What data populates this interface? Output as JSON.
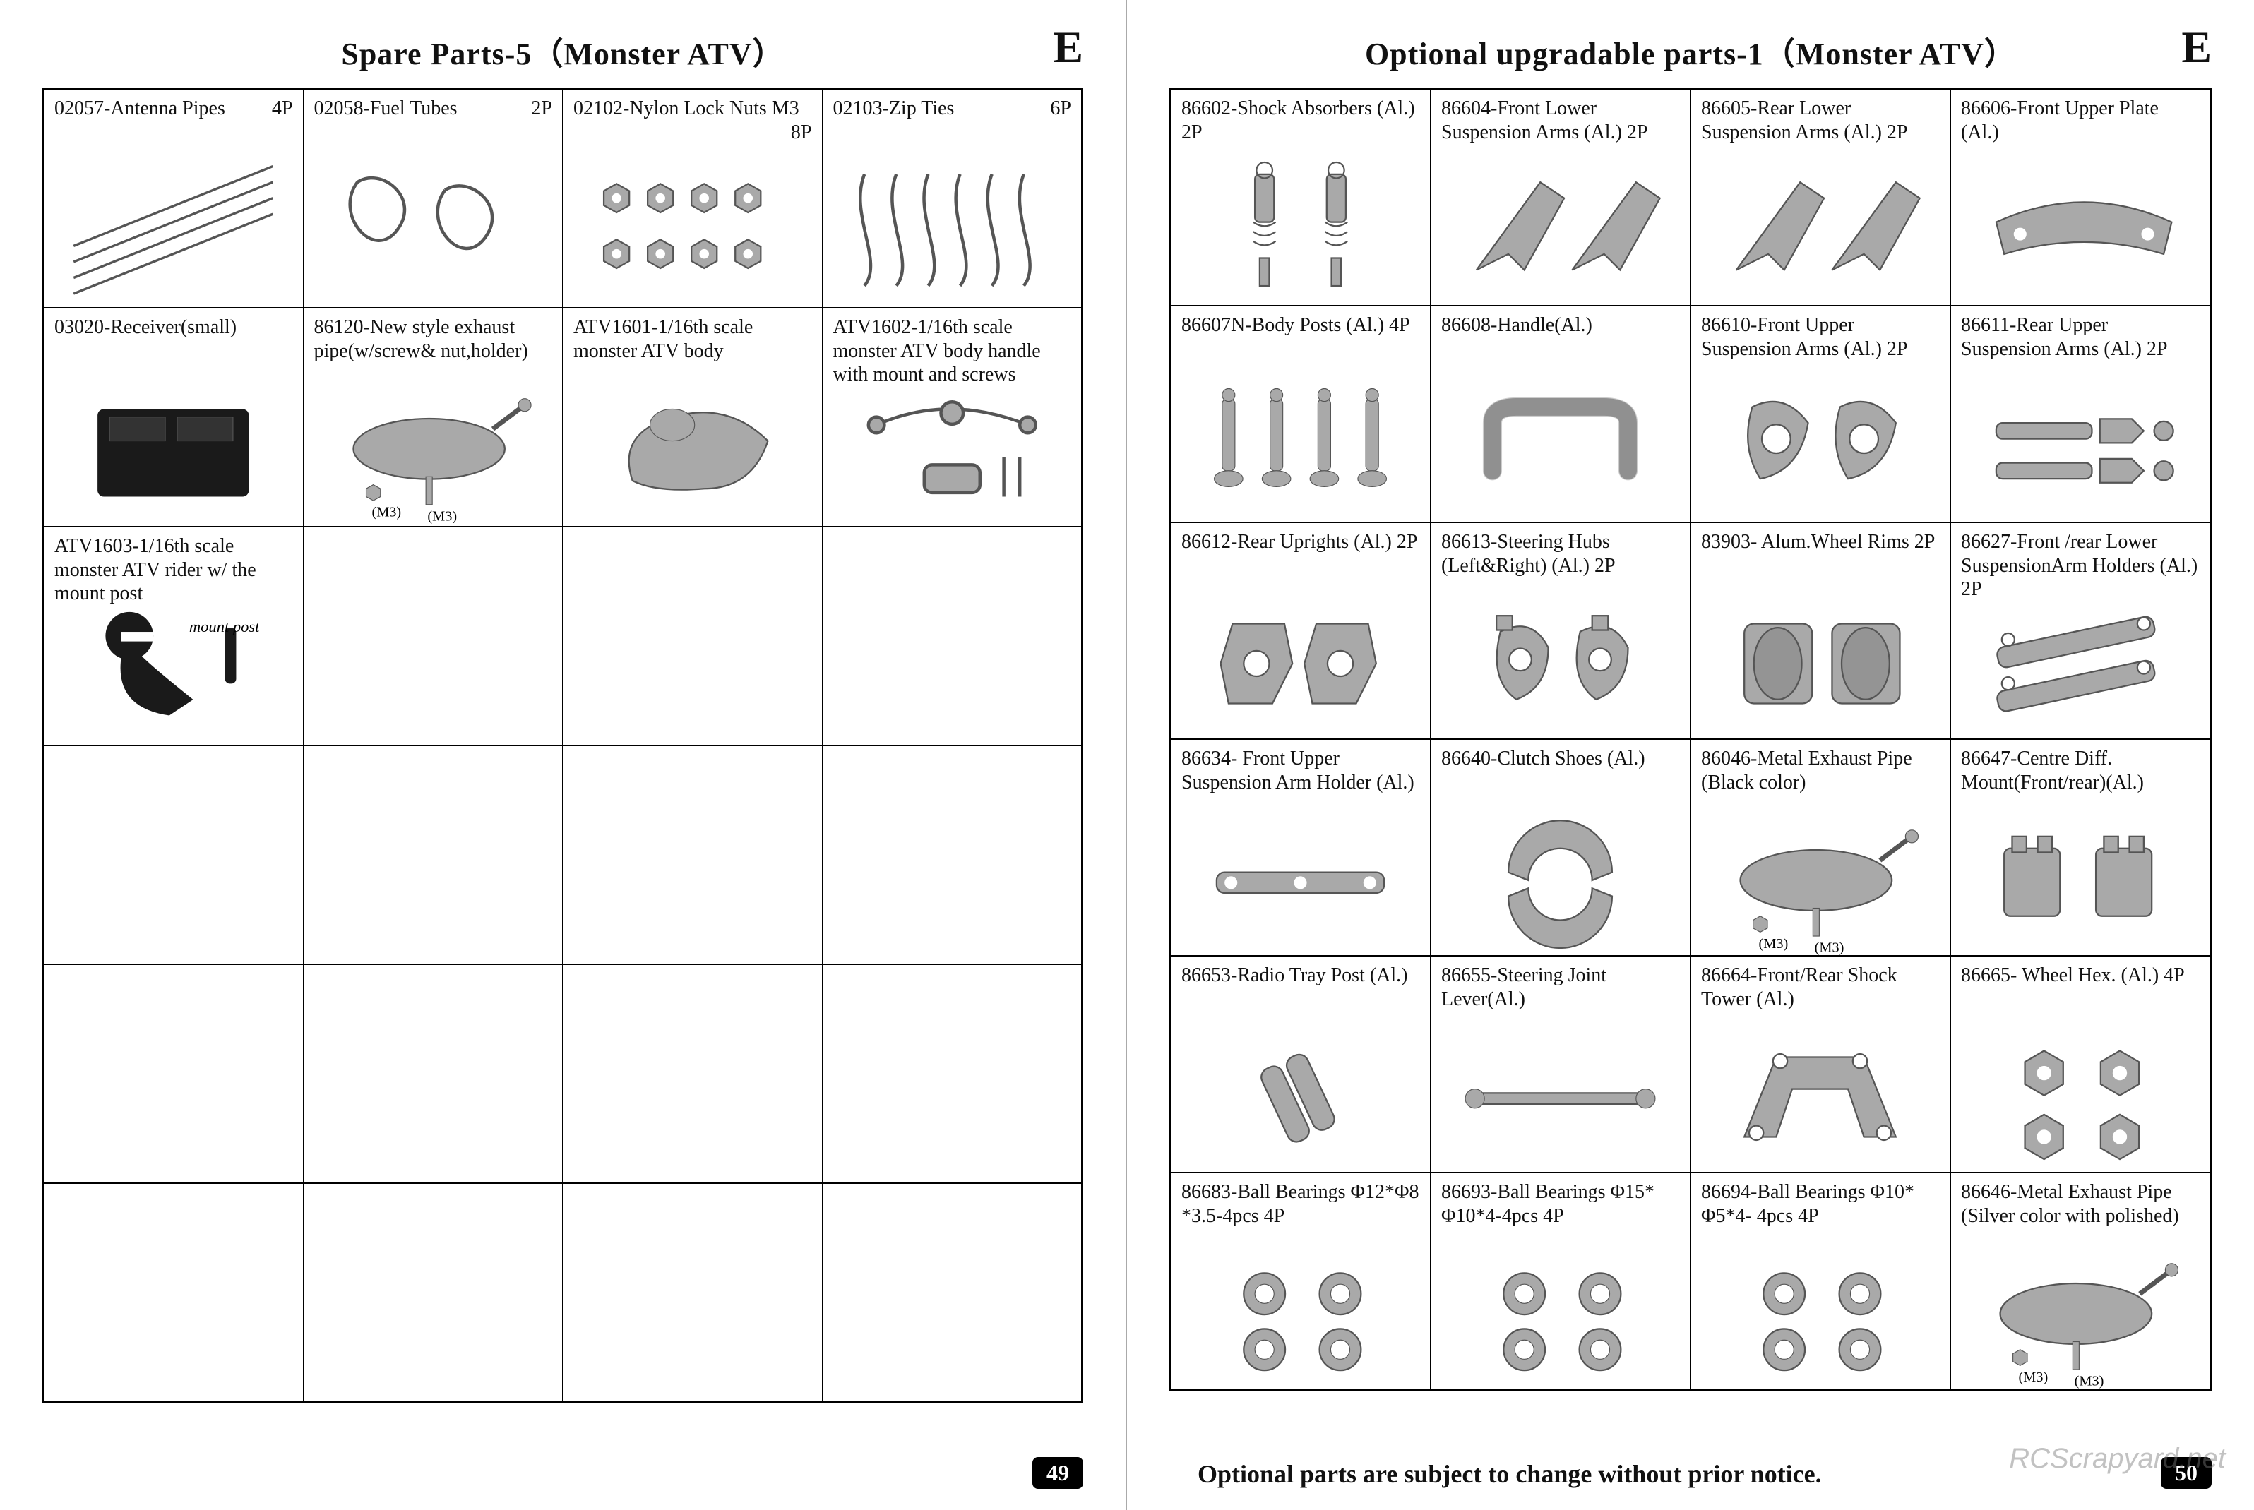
{
  "left": {
    "title": "Spare Parts-5（Monster ATV）",
    "section": "E",
    "pageNum": "49",
    "cells": [
      {
        "label": "02057-Antenna Pipes",
        "qty": "4P",
        "icon": "lines"
      },
      {
        "label": "02058-Fuel Tubes",
        "qty": "2P",
        "icon": "loops"
      },
      {
        "label": "02102-Nylon Lock Nuts M3",
        "qty": "8P",
        "icon": "nuts8"
      },
      {
        "label": "02103-Zip Ties",
        "qty": "6P",
        "icon": "zips"
      },
      {
        "label": "03020-Receiver(small)",
        "qty": "",
        "icon": "receiver"
      },
      {
        "label": "86120-New style exhaust pipe(w/screw& nut,holder)",
        "qty": "",
        "icon": "exhaust",
        "note": "(M3)"
      },
      {
        "label": "ATV1601-1/16th scale monster ATV body",
        "qty": "",
        "icon": "body"
      },
      {
        "label": "ATV1602-1/16th scale monster ATV body handle with mount and screws",
        "qty": "",
        "icon": "handle"
      },
      {
        "label": "ATV1603-1/16th scale monster ATV rider w/ the mount post",
        "qty": "",
        "icon": "rider",
        "note": "mount post"
      },
      {
        "label": "",
        "qty": "",
        "icon": ""
      },
      {
        "label": "",
        "qty": "",
        "icon": ""
      },
      {
        "label": "",
        "qty": "",
        "icon": ""
      },
      {
        "label": "",
        "qty": "",
        "icon": ""
      },
      {
        "label": "",
        "qty": "",
        "icon": ""
      },
      {
        "label": "",
        "qty": "",
        "icon": ""
      },
      {
        "label": "",
        "qty": "",
        "icon": ""
      },
      {
        "label": "",
        "qty": "",
        "icon": ""
      },
      {
        "label": "",
        "qty": "",
        "icon": ""
      },
      {
        "label": "",
        "qty": "",
        "icon": ""
      },
      {
        "label": "",
        "qty": "",
        "icon": ""
      },
      {
        "label": "",
        "qty": "",
        "icon": ""
      },
      {
        "label": "",
        "qty": "",
        "icon": ""
      },
      {
        "label": "",
        "qty": "",
        "icon": ""
      },
      {
        "label": "",
        "qty": "",
        "icon": ""
      }
    ]
  },
  "right": {
    "title": "Optional upgradable parts-1（Monster ATV）",
    "section": "E",
    "pageNum": "50",
    "footer": "Optional parts are subject to change without prior notice.",
    "cells": [
      {
        "label": "86602-Shock Absorbers (Al.) 2P",
        "icon": "shocks"
      },
      {
        "label": "86604-Front Lower Suspension Arms (Al.) 2P",
        "icon": "arms"
      },
      {
        "label": "86605-Rear Lower Suspension Arms (Al.) 2P",
        "icon": "arms"
      },
      {
        "label": "86606-Front Upper Plate (Al.)",
        "icon": "plate"
      },
      {
        "label": "86607N-Body Posts (Al.) 4P",
        "icon": "posts4"
      },
      {
        "label": "86608-Handle(Al.)",
        "icon": "alhandle"
      },
      {
        "label": "86610-Front Upper Suspension Arms (Al.) 2P",
        "icon": "uarms"
      },
      {
        "label": "86611-Rear Upper Suspension Arms (Al.) 2P",
        "icon": "rarms"
      },
      {
        "label": "86612-Rear Uprights (Al.)    2P",
        "icon": "uprights"
      },
      {
        "label": "86613-Steering Hubs (Left&Right) (Al.)    2P",
        "icon": "hubs"
      },
      {
        "label": "83903- Alum.Wheel Rims    2P",
        "icon": "rims"
      },
      {
        "label": "86627-Front /rear Lower SuspensionArm Holders (Al.) 2P",
        "icon": "holders"
      },
      {
        "label": "86634- Front Upper Suspension Arm Holder (Al.)",
        "icon": "holder1"
      },
      {
        "label": "86640-Clutch Shoes (Al.)",
        "icon": "clutch"
      },
      {
        "label": "86046-Metal Exhaust Pipe (Black color)",
        "icon": "exhaust",
        "note": "(M3)"
      },
      {
        "label": "86647-Centre Diff. Mount(Front/rear)(Al.)",
        "icon": "diffmount"
      },
      {
        "label": "86653-Radio Tray Post (Al.)",
        "icon": "traypost"
      },
      {
        "label": "86655-Steering Joint Lever(Al.)",
        "icon": "lever"
      },
      {
        "label": "86664-Front/Rear Shock Tower (Al.)",
        "icon": "tower"
      },
      {
        "label": "86665- Wheel Hex. (Al.) 4P",
        "icon": "hex4"
      },
      {
        "label": "86683-Ball Bearings Φ12*Φ8 *3.5-4pcs    4P",
        "icon": "bearings"
      },
      {
        "label": "86693-Ball Bearings Φ15* Φ10*4-4pcs    4P",
        "icon": "bearings"
      },
      {
        "label": "86694-Ball Bearings Φ10* Φ5*4- 4pcs    4P",
        "icon": "bearings"
      },
      {
        "label": "86646-Metal Exhaust Pipe (Silver color with polished)",
        "icon": "exhaust",
        "note": "(M3)"
      }
    ]
  },
  "watermark": "RCScrapyard.net",
  "colors": {
    "border": "#000000",
    "partFill": "#a9a9a9",
    "partStroke": "#555555",
    "black": "#1a1a1a"
  }
}
